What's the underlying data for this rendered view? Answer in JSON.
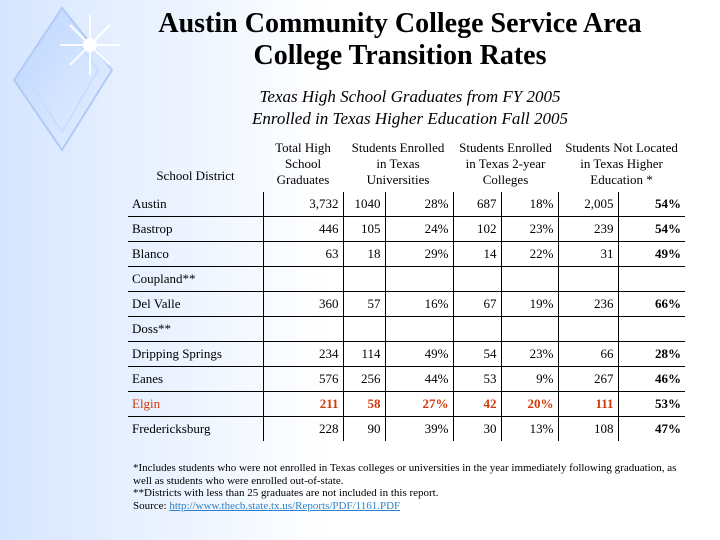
{
  "title": {
    "line1": "Austin Community College Service Area",
    "line2": "College Transition Rates"
  },
  "subtitle": {
    "line1": "Texas High School Graduates from FY 2005",
    "line2": "Enrolled in Texas Higher Education Fall 2005"
  },
  "table": {
    "headers": [
      "School District",
      "Total High School Graduates",
      "Students Enrolled in Texas Universities",
      "Students Enrolled in Texas 2-year Colleges",
      "Students Not Located in Texas Higher Education *"
    ],
    "rows": [
      {
        "district": "Austin",
        "grads": "3,732",
        "univ_n": "1040",
        "univ_pct": "28%",
        "col_n": "687",
        "col_pct": "18%",
        "not_n": "2,005",
        "not_pct": "54%"
      },
      {
        "district": "Bastrop",
        "grads": "446",
        "univ_n": "105",
        "univ_pct": "24%",
        "col_n": "102",
        "col_pct": "23%",
        "not_n": "239",
        "not_pct": "54%"
      },
      {
        "district": "Blanco",
        "grads": "63",
        "univ_n": "18",
        "univ_pct": "29%",
        "col_n": "14",
        "col_pct": "22%",
        "not_n": "31",
        "not_pct": "49%"
      },
      {
        "district": "Coupland**",
        "grads": "",
        "univ_n": "",
        "univ_pct": "",
        "col_n": "",
        "col_pct": "",
        "not_n": "",
        "not_pct": ""
      },
      {
        "district": "Del Valle",
        "grads": "360",
        "univ_n": "57",
        "univ_pct": "16%",
        "col_n": "67",
        "col_pct": "19%",
        "not_n": "236",
        "not_pct": "66%"
      },
      {
        "district": "Doss**",
        "grads": "",
        "univ_n": "",
        "univ_pct": "",
        "col_n": "",
        "col_pct": "",
        "not_n": "",
        "not_pct": ""
      },
      {
        "district": "Dripping Springs",
        "grads": "234",
        "univ_n": "114",
        "univ_pct": "49%",
        "col_n": "54",
        "col_pct": "23%",
        "not_n": "66",
        "not_pct": "28%"
      },
      {
        "district": "Eanes",
        "grads": "576",
        "univ_n": "256",
        "univ_pct": "44%",
        "col_n": "53",
        "col_pct": "9%",
        "not_n": "267",
        "not_pct": "46%"
      },
      {
        "district": "Elgin",
        "grads": "211",
        "univ_n": "58",
        "univ_pct": "27%",
        "col_n": "42",
        "col_pct": "20%",
        "not_n": "111",
        "not_pct": "53%"
      },
      {
        "district": "Fredericksburg",
        "grads": "228",
        "univ_n": "90",
        "univ_pct": "39%",
        "col_n": "30",
        "col_pct": "13%",
        "not_n": "108",
        "not_pct": "47%"
      }
    ]
  },
  "notes": {
    "line1": "*Includes students who were not enrolled in Texas colleges or universities in the year immediately following graduation, as well as students who were enrolled out-of-state.",
    "line2": "**Districts with less than 25 graduates are not included in this report.",
    "source_label": "Source: ",
    "source_link": "http://www.thecb.state.tx.us/Reports/PDF/1161.PDF"
  },
  "colors": {
    "highlight_row": "#d03a0a",
    "link": "#2f80c8",
    "background_accent": "#d6e6ff"
  },
  "icons": [
    "sparkle-diamond-decoration"
  ]
}
